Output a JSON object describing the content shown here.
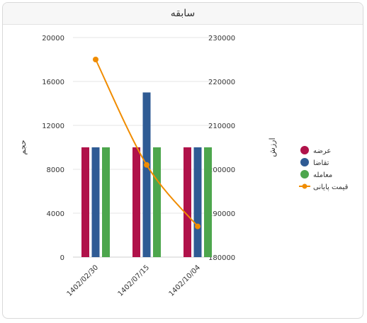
{
  "header": {
    "title": "سابقه"
  },
  "chart_data": {
    "type": "bar",
    "categories": [
      "1402/02/30",
      "1402/07/15",
      "1402/10/04"
    ],
    "series": [
      {
        "name": "عرضه",
        "type": "bar",
        "axis": "left",
        "color": "#b0124a",
        "values": [
          10000,
          10000,
          10000
        ]
      },
      {
        "name": "تقاضا",
        "type": "bar",
        "axis": "left",
        "color": "#2f5b94",
        "values": [
          10000,
          15000,
          10000
        ]
      },
      {
        "name": "معامله",
        "type": "bar",
        "axis": "left",
        "color": "#4da64d",
        "values": [
          10000,
          10000,
          10000
        ]
      },
      {
        "name": "قیمت پایانی",
        "type": "line",
        "axis": "right",
        "color": "#f08c00",
        "values": [
          225000,
          201000,
          187000
        ]
      }
    ],
    "left_axis": {
      "label": "حجم",
      "ylim": [
        0,
        20000
      ],
      "ticks": [
        "0",
        "4000",
        "8000",
        "12000",
        "16000",
        "20000"
      ]
    },
    "right_axis": {
      "label": "ارزش",
      "ylim": [
        180000,
        230000
      ],
      "ticks": [
        "180000",
        "190000",
        "200000",
        "210000",
        "220000",
        "230000"
      ]
    },
    "grid": true,
    "legend": "right"
  }
}
